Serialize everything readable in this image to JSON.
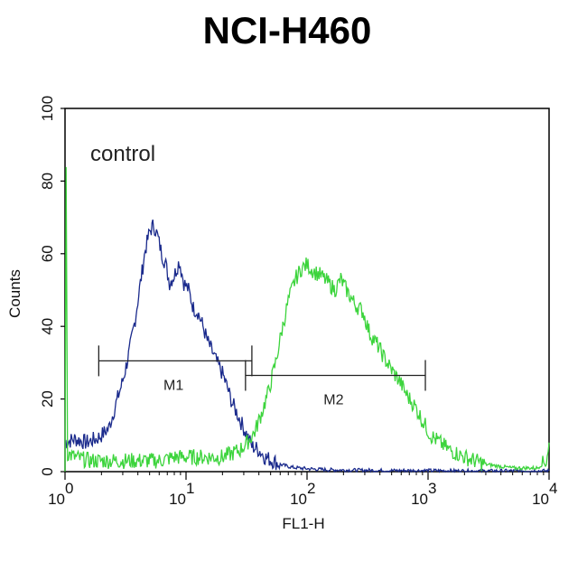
{
  "chart_data": {
    "type": "line",
    "title": "NCI-H460",
    "xlabel": "FL1-H",
    "ylabel": "Counts",
    "x_scale": "log",
    "xlim": [
      1,
      10000
    ],
    "ylim": [
      0,
      100
    ],
    "x_ticks": [
      {
        "value": 1,
        "base": "10",
        "exp": "0"
      },
      {
        "value": 10,
        "base": "10",
        "exp": "1"
      },
      {
        "value": 100,
        "base": "10",
        "exp": "2"
      },
      {
        "value": 1000,
        "base": "10",
        "exp": "3"
      },
      {
        "value": 10000,
        "base": "10",
        "exp": "4"
      }
    ],
    "y_ticks": [
      "0",
      "20",
      "40",
      "60",
      "80",
      "100"
    ],
    "annotation": "control",
    "series": [
      {
        "color": "#1a2a8c",
        "x": [
          1,
          1.2,
          1.5,
          1.8,
          2.0,
          2.3,
          2.6,
          3.0,
          3.4,
          3.8,
          4.2,
          4.6,
          5.0,
          5.4,
          5.8,
          6.3,
          6.8,
          7.3,
          8.0,
          8.8,
          9.6,
          10.5,
          11.5,
          12.5,
          13.8,
          15.0,
          16.5,
          18.0,
          20.0,
          22.0,
          24.0,
          26.5,
          29.0,
          32.0,
          35.0,
          40.0,
          45.0,
          52.0,
          60.0,
          75.0,
          100,
          150,
          250,
          500,
          1000,
          2000,
          10000
        ],
        "values": [
          8,
          9,
          8,
          9,
          10,
          12,
          18,
          25,
          33,
          42,
          52,
          61,
          66,
          68,
          65,
          60,
          57,
          52,
          54,
          58,
          52,
          50,
          45,
          44,
          40,
          36,
          33,
          30,
          27,
          23,
          19,
          16,
          13,
          10,
          7,
          6,
          4,
          3,
          2,
          1.2,
          0.8,
          0.5,
          0.4,
          0.3,
          0.3,
          0.2,
          0.2
        ]
      },
      {
        "color": "#3cd43c",
        "x": [
          1,
          1.02,
          1.05,
          1.2,
          1.6,
          2,
          3,
          4,
          6,
          8,
          10,
          13,
          16,
          20,
          24,
          28,
          32,
          37,
          42,
          48,
          55,
          62,
          70,
          80,
          90,
          100,
          115,
          130,
          150,
          170,
          190,
          220,
          250,
          290,
          330,
          380,
          440,
          500,
          580,
          670,
          780,
          900,
          1050,
          1250,
          1500,
          2000,
          3000,
          5000,
          8000,
          9500,
          10000
        ],
        "values": [
          0,
          85,
          5,
          4,
          3,
          3,
          3,
          3,
          3,
          4,
          4,
          4,
          4,
          4,
          5,
          6,
          8,
          11,
          16,
          22,
          30,
          39,
          47,
          53,
          56,
          57,
          55,
          54,
          52,
          50,
          53,
          49,
          46,
          44,
          38,
          35,
          31,
          28,
          25,
          21,
          18,
          14,
          10,
          8,
          6,
          4,
          2,
          1,
          1,
          3,
          8
        ]
      }
    ],
    "markers": [
      {
        "label": "M1",
        "x_start": 1.9,
        "x_end": 35
      },
      {
        "label": "M2",
        "x_start": 31,
        "x_end": 950
      }
    ]
  }
}
